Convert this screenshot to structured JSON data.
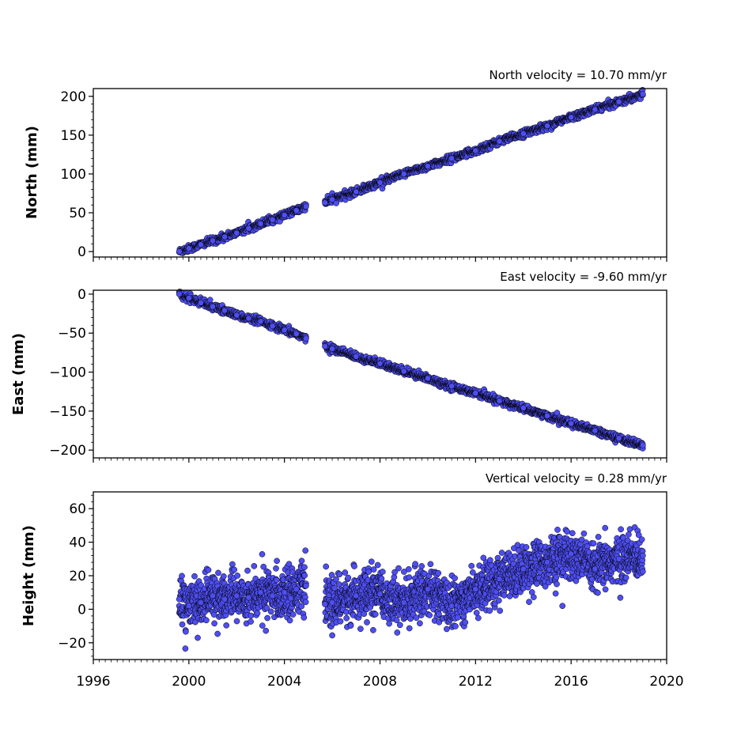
{
  "chart_data": [
    {
      "type": "scatter",
      "ylabel": "North (mm)",
      "annotation": "North velocity = 10.70 mm/yr",
      "velocity_mm_per_yr": 10.7,
      "ylim": [
        -7,
        210
      ],
      "yticks": [
        0,
        50,
        100,
        150,
        200
      ],
      "xlim": [
        1996,
        2020
      ],
      "series": [
        {
          "name": "",
          "segments": [
            {
              "x": [
                1999.6,
                2000.0,
                2000.5,
                2001.0,
                2001.5,
                2002.0,
                2002.5,
                2003.0,
                2003.5,
                2004.0,
                2004.5,
                2004.9
              ],
              "y": [
                0,
                4,
                9,
                14,
                19,
                24,
                30,
                36,
                41,
                47,
                53,
                58
              ]
            },
            {
              "x": [
                2005.7,
                2006.0,
                2007.0,
                2008.0,
                2009.0,
                2010.0,
                2011.0,
                2012.0,
                2013.0,
                2014.0,
                2015.0,
                2016.0,
                2017.0,
                2018.0,
                2019.0
              ],
              "y": [
                63,
                67,
                77,
                89,
                100,
                110,
                120,
                130,
                142,
                152,
                162,
                173,
                183,
                193,
                203
              ]
            }
          ]
        }
      ]
    },
    {
      "type": "scatter",
      "ylabel": "East (mm)",
      "annotation": "East velocity = -9.60 mm/yr",
      "velocity_mm_per_yr": -9.6,
      "ylim": [
        -210,
        5
      ],
      "yticks": [
        0,
        -50,
        -100,
        -150,
        -200
      ],
      "xlim": [
        1996,
        2020
      ],
      "series": [
        {
          "name": "",
          "segments": [
            {
              "x": [
                1999.6,
                2000.0,
                2000.5,
                2001.0,
                2001.5,
                2002.0,
                2002.5,
                2003.0,
                2003.5,
                2004.0,
                2004.5,
                2004.9
              ],
              "y": [
                0,
                -5,
                -11,
                -16,
                -21,
                -27,
                -31,
                -35,
                -41,
                -46,
                -51,
                -57
              ]
            },
            {
              "x": [
                2005.7,
                2006.0,
                2007.0,
                2008.0,
                2009.0,
                2010.0,
                2011.0,
                2012.0,
                2013.0,
                2014.0,
                2015.0,
                2016.0,
                2017.0,
                2018.0,
                2019.0
              ],
              "y": [
                -67,
                -70,
                -80,
                -89,
                -99,
                -108,
                -118,
                -127,
                -137,
                -146,
                -156,
                -166,
                -175,
                -185,
                -194
              ]
            }
          ]
        }
      ]
    },
    {
      "type": "scatter",
      "ylabel": "Height (mm)",
      "annotation": "Vertical velocity = 0.28 mm/yr",
      "velocity_mm_per_yr": 0.28,
      "ylim": [
        -30,
        70
      ],
      "yticks": [
        -20,
        0,
        20,
        40,
        60
      ],
      "xlim": [
        1996,
        2020
      ],
      "series": [
        {
          "name": "",
          "segments": [
            {
              "x": [
                1999.6,
                2000.0,
                2000.5,
                2001.0,
                2001.5,
                2002.0,
                2002.5,
                2003.0,
                2003.5,
                2004.0,
                2004.5,
                2004.9
              ],
              "y": [
                6,
                2,
                4,
                8,
                6,
                8,
                7,
                10,
                8,
                10,
                12,
                14
              ]
            },
            {
              "x": [
                2005.7,
                2006.0,
                2007.0,
                2008.0,
                2009.0,
                2010.0,
                2011.0,
                2012.0,
                2013.0,
                2014.0,
                2015.0,
                2016.0,
                2017.0,
                2018.0,
                2019.0
              ],
              "y": [
                3,
                4,
                8,
                9,
                4,
                12,
                2,
                12,
                18,
                24,
                28,
                33,
                24,
                30,
                32
              ]
            }
          ]
        }
      ]
    }
  ],
  "x_axis": {
    "tick_labels": [
      "1996",
      "2000",
      "2004",
      "2008",
      "2012",
      "2016",
      "2020"
    ],
    "tick_values": [
      1996,
      2000,
      2004,
      2008,
      2012,
      2016,
      2020
    ],
    "minor_step_years": 0.25
  },
  "colors": {
    "marker_fill": "#4e4ef2",
    "marker_edge": "#000000",
    "axes": "#000000",
    "background": "#ffffff"
  }
}
